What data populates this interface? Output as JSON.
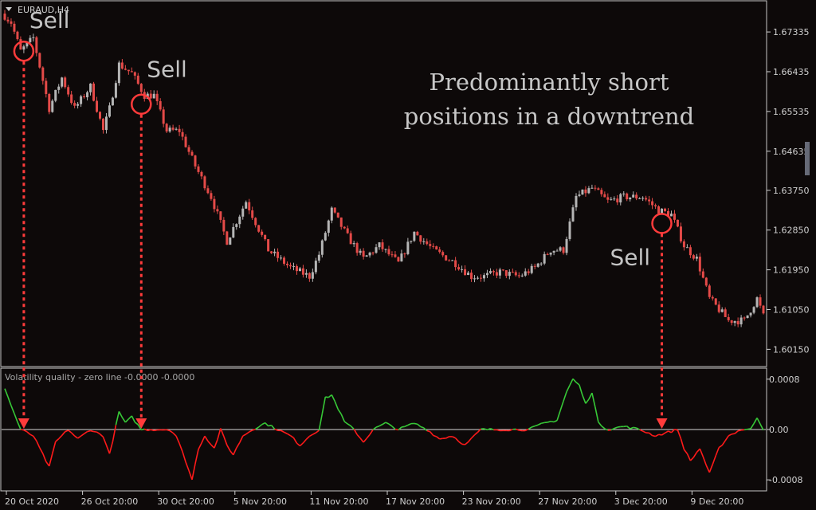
{
  "chart_data": [
    {
      "type": "candlestick",
      "title": "EURAUD,H4",
      "symbol_menu": "▼",
      "ylim": [
        1.5985,
        1.6795
      ],
      "ytick_labels": [
        "1.67335",
        "1.66435",
        "1.65535",
        "1.64635",
        "1.63750",
        "1.62850",
        "1.61950",
        "1.61050",
        "1.60150"
      ],
      "ytick_values": [
        1.67335,
        1.66435,
        1.65535,
        1.64635,
        1.6375,
        1.6285,
        1.6195,
        1.6105,
        1.6015
      ],
      "grid": false,
      "key_prices": [
        {
          "x": 0,
          "y": 1.677
        },
        {
          "x": 2,
          "y": 1.6755
        },
        {
          "x": 5,
          "y": 1.669
        },
        {
          "x": 9,
          "y": 1.672
        },
        {
          "x": 14,
          "y": 1.656
        },
        {
          "x": 18,
          "y": 1.663
        },
        {
          "x": 22,
          "y": 1.656
        },
        {
          "x": 27,
          "y": 1.661
        },
        {
          "x": 31,
          "y": 1.651
        },
        {
          "x": 33,
          "y": 1.656
        },
        {
          "x": 36,
          "y": 1.666
        },
        {
          "x": 40,
          "y": 1.664
        },
        {
          "x": 44,
          "y": 1.659
        },
        {
          "x": 47,
          "y": 1.659
        },
        {
          "x": 51,
          "y": 1.651
        },
        {
          "x": 55,
          "y": 1.651
        },
        {
          "x": 60,
          "y": 1.643
        },
        {
          "x": 65,
          "y": 1.636
        },
        {
          "x": 70,
          "y": 1.626
        },
        {
          "x": 76,
          "y": 1.635
        },
        {
          "x": 83,
          "y": 1.624
        },
        {
          "x": 90,
          "y": 1.62
        },
        {
          "x": 96,
          "y": 1.618
        },
        {
          "x": 99,
          "y": 1.623
        },
        {
          "x": 103,
          "y": 1.633
        },
        {
          "x": 108,
          "y": 1.627
        },
        {
          "x": 113,
          "y": 1.622
        },
        {
          "x": 118,
          "y": 1.625
        },
        {
          "x": 124,
          "y": 1.621
        },
        {
          "x": 129,
          "y": 1.628
        },
        {
          "x": 135,
          "y": 1.624
        },
        {
          "x": 142,
          "y": 1.621
        },
        {
          "x": 147,
          "y": 1.618
        },
        {
          "x": 151,
          "y": 1.618
        },
        {
          "x": 156,
          "y": 1.619
        },
        {
          "x": 162,
          "y": 1.618
        },
        {
          "x": 167,
          "y": 1.62
        },
        {
          "x": 172,
          "y": 1.624
        },
        {
          "x": 176,
          "y": 1.624
        },
        {
          "x": 180,
          "y": 1.636
        },
        {
          "x": 185,
          "y": 1.638
        },
        {
          "x": 190,
          "y": 1.635
        },
        {
          "x": 195,
          "y": 1.636
        },
        {
          "x": 201,
          "y": 1.636
        },
        {
          "x": 206,
          "y": 1.633
        },
        {
          "x": 210,
          "y": 1.632
        },
        {
          "x": 214,
          "y": 1.625
        },
        {
          "x": 218,
          "y": 1.622
        },
        {
          "x": 222,
          "y": 1.613
        },
        {
          "x": 228,
          "y": 1.608
        },
        {
          "x": 233,
          "y": 1.608
        },
        {
          "x": 237,
          "y": 1.613
        },
        {
          "x": 239,
          "y": 1.609
        }
      ],
      "annotations": [
        {
          "text": "Sell",
          "x": 6,
          "y": 1.669
        },
        {
          "text": "Sell",
          "x": 43,
          "y": 1.657
        },
        {
          "text": "Sell",
          "x": 207,
          "y": 1.63
        },
        {
          "text": "Predominantly short",
          "line": 1
        },
        {
          "text": "positions in a downtrend",
          "line": 2
        }
      ]
    },
    {
      "type": "line",
      "title": "Volatility quality - zero line -0.0000 -0.0000",
      "ylim": [
        -0.00095,
        0.00095
      ],
      "ytick_labels": [
        "0.0008",
        "0.00",
        "-0.0008"
      ],
      "ytick_values": [
        0.0008,
        0.0,
        -0.0008
      ],
      "zero_line": true,
      "series": [
        {
          "color_positive": "#37c837",
          "color_negative": "#ff1a1a"
        }
      ],
      "key_values": [
        {
          "x": 0,
          "y": 0.00065
        },
        {
          "x": 3,
          "y": 0.00025
        },
        {
          "x": 5,
          "y": 0.0
        },
        {
          "x": 9,
          "y": -0.0001
        },
        {
          "x": 12,
          "y": -0.0004
        },
        {
          "x": 14,
          "y": -0.0006
        },
        {
          "x": 16,
          "y": -0.0002
        },
        {
          "x": 20,
          "y": 0.0
        },
        {
          "x": 23,
          "y": -0.00015
        },
        {
          "x": 27,
          "y": 0.0
        },
        {
          "x": 31,
          "y": -0.0001
        },
        {
          "x": 33,
          "y": -0.0004
        },
        {
          "x": 36,
          "y": 0.00028
        },
        {
          "x": 38,
          "y": 0.0001
        },
        {
          "x": 40,
          "y": 0.0002
        },
        {
          "x": 43,
          "y": 0.0
        },
        {
          "x": 52,
          "y": 0.0
        },
        {
          "x": 54,
          "y": -0.0001
        },
        {
          "x": 57,
          "y": -0.0005
        },
        {
          "x": 59,
          "y": -0.0008
        },
        {
          "x": 61,
          "y": -0.0003
        },
        {
          "x": 63,
          "y": -0.0001
        },
        {
          "x": 66,
          "y": -0.0003
        },
        {
          "x": 68,
          "y": 0.0
        },
        {
          "x": 70,
          "y": -0.00025
        },
        {
          "x": 72,
          "y": -0.0004
        },
        {
          "x": 75,
          "y": -0.0001
        },
        {
          "x": 78,
          "y": 0.0
        },
        {
          "x": 82,
          "y": 0.0001
        },
        {
          "x": 86,
          "y": 0.0
        },
        {
          "x": 90,
          "y": -0.0001
        },
        {
          "x": 93,
          "y": -0.00025
        },
        {
          "x": 96,
          "y": -0.0001
        },
        {
          "x": 99,
          "y": 0.0
        },
        {
          "x": 101,
          "y": 0.0005
        },
        {
          "x": 103,
          "y": 0.00055
        },
        {
          "x": 107,
          "y": 0.00012
        },
        {
          "x": 110,
          "y": 0.0
        },
        {
          "x": 113,
          "y": -0.0002
        },
        {
          "x": 116,
          "y": 0.0
        },
        {
          "x": 120,
          "y": 0.0001
        },
        {
          "x": 124,
          "y": 0.0
        },
        {
          "x": 129,
          "y": 0.0001
        },
        {
          "x": 133,
          "y": 0.0
        },
        {
          "x": 137,
          "y": -0.00015
        },
        {
          "x": 141,
          "y": -0.0001
        },
        {
          "x": 145,
          "y": -0.00025
        },
        {
          "x": 148,
          "y": -0.0001
        },
        {
          "x": 150,
          "y": 0.0
        },
        {
          "x": 165,
          "y": 0.0
        },
        {
          "x": 170,
          "y": 0.0001
        },
        {
          "x": 174,
          "y": 0.00015
        },
        {
          "x": 177,
          "y": 0.0006
        },
        {
          "x": 179,
          "y": 0.0008
        },
        {
          "x": 181,
          "y": 0.0007
        },
        {
          "x": 183,
          "y": 0.0004
        },
        {
          "x": 185,
          "y": 0.0006
        },
        {
          "x": 187,
          "y": 0.0001
        },
        {
          "x": 190,
          "y": 0.0
        },
        {
          "x": 195,
          "y": 5e-05
        },
        {
          "x": 200,
          "y": 0.0
        },
        {
          "x": 205,
          "y": -0.0001
        },
        {
          "x": 212,
          "y": 0.0
        },
        {
          "x": 214,
          "y": -0.0003
        },
        {
          "x": 216,
          "y": -0.0005
        },
        {
          "x": 219,
          "y": -0.0003
        },
        {
          "x": 222,
          "y": -0.0007
        },
        {
          "x": 225,
          "y": -0.0003
        },
        {
          "x": 228,
          "y": -0.0001
        },
        {
          "x": 232,
          "y": 0.0
        },
        {
          "x": 235,
          "y": 0.0
        },
        {
          "x": 237,
          "y": 0.0002
        },
        {
          "x": 239,
          "y": 0.0
        }
      ]
    }
  ],
  "x_axis": {
    "tick_labels": [
      "20 Oct 2020",
      "26 Oct 20:00",
      "30 Oct 20:00",
      "5 Nov 20:00",
      "11 Nov 20:00",
      "17 Nov 20:00",
      "23 Nov 20:00",
      "27 Nov 20:00",
      "3 Dec 20:00",
      "9 Dec 20:00"
    ],
    "tick_bars": [
      0,
      24,
      48,
      72,
      96,
      120,
      144,
      168,
      192,
      216
    ],
    "bar_count": 240
  },
  "sell_signal_bars": [
    6,
    43,
    207
  ],
  "colors": {
    "background": "#0d0909",
    "bull": "#b5b5b5",
    "bear": "#e44a48",
    "axis": "#cfcfcf",
    "signal": "#ff3b3b",
    "osc_up": "#37c837",
    "osc_down": "#ff1a1a"
  }
}
